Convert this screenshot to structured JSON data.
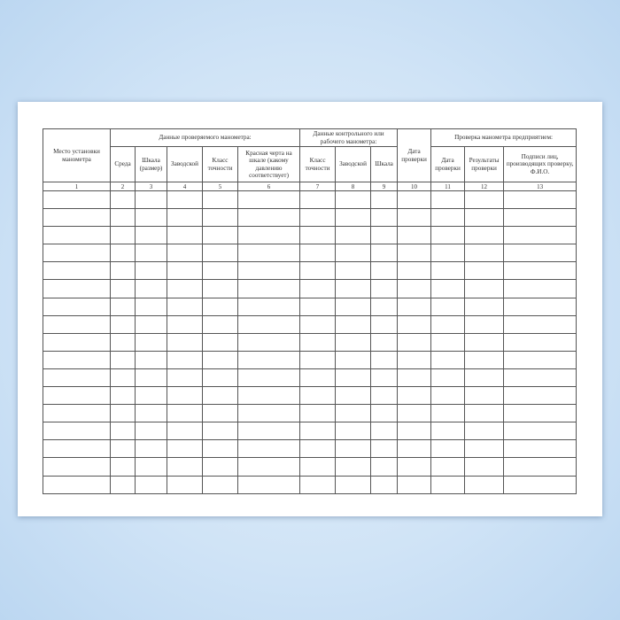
{
  "form": {
    "col1": "Место установки манометра",
    "group_tested": "Данные проверяемого манометра:",
    "group_control": "Данные контрольного или рабочего манометра:",
    "col10": "Дата проверки",
    "group_enterprise": "Проверка манометра предприятием:",
    "subcols": [
      "Среда",
      "Шкала (размер)",
      "Заводской",
      "Класс точности",
      "Красная черта на шкале (какому давлению соответствует)",
      "Класс точности",
      "Заводской",
      "Шкала"
    ],
    "enterprise_subcols": [
      "Дата проверки",
      "Результаты проверки",
      "Подписи лиц, производящих проверку, Ф.И.О."
    ],
    "numbers": [
      "1",
      "2",
      "3",
      "4",
      "5",
      "6",
      "7",
      "8",
      "9",
      "10",
      "11",
      "12",
      "13"
    ],
    "empty_rows": 17
  }
}
